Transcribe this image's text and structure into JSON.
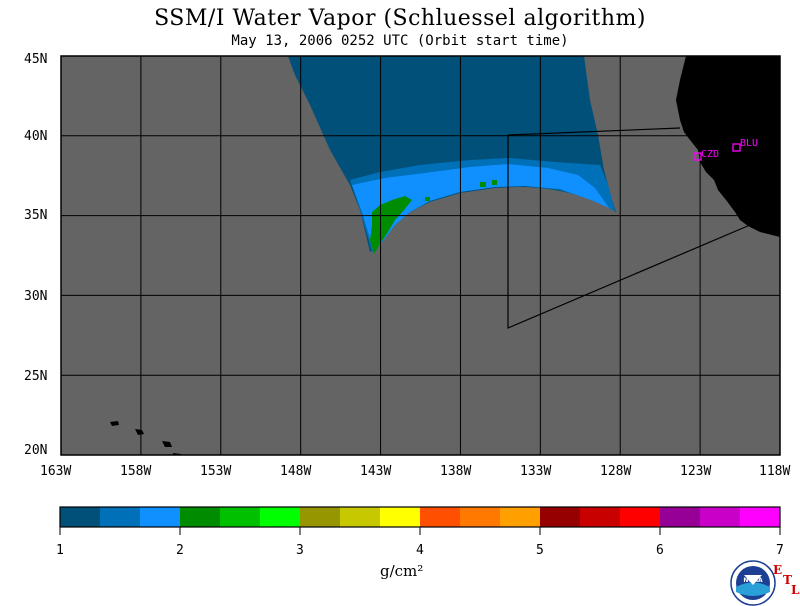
{
  "title": "SSM/I Water Vapor (Schluessel algorithm)",
  "subtitle": "May 13, 2006  0252 UTC  (Orbit start time)",
  "map": {
    "lon_range": [
      -163,
      -118
    ],
    "lat_range": [
      20,
      45
    ],
    "lon_ticks": [
      -163,
      -158,
      -153,
      -148,
      -143,
      -138,
      -133,
      -128,
      -123,
      -118
    ],
    "lat_ticks": [
      45,
      40,
      35,
      30,
      25,
      20
    ],
    "lon_labels": [
      "163W",
      "158W",
      "153W",
      "148W",
      "143W",
      "138W",
      "133W",
      "128W",
      "123W",
      "118W"
    ],
    "lat_labels": [
      "45N",
      "40N",
      "35N",
      "30N",
      "25N",
      "20N"
    ],
    "ocean_color": "#646464",
    "land_color": "#000000",
    "grid_color": "#000000",
    "stations": [
      {
        "name": "CZD",
        "color": "#ff00ff"
      },
      {
        "name": "BLU",
        "color": "#ff00ff"
      }
    ]
  },
  "colorbar": {
    "colors": [
      "#00507a",
      "#0070b8",
      "#1090ff",
      "#008c00",
      "#00c000",
      "#00ff00",
      "#969600",
      "#c8c800",
      "#ffff00",
      "#ff5000",
      "#ff7800",
      "#ffa000",
      "#960000",
      "#c80000",
      "#ff0000",
      "#960096",
      "#c800c8",
      "#ff00ff"
    ],
    "tick_labels": [
      "1",
      "2",
      "3",
      "4",
      "5",
      "6",
      "7"
    ],
    "units": "g/cm²"
  },
  "logo": {
    "text": "NOAA",
    "icon": "noaa-logo-icon",
    "etl_letters": [
      "E",
      "T",
      "L"
    ],
    "etl_color": "#d00000"
  }
}
